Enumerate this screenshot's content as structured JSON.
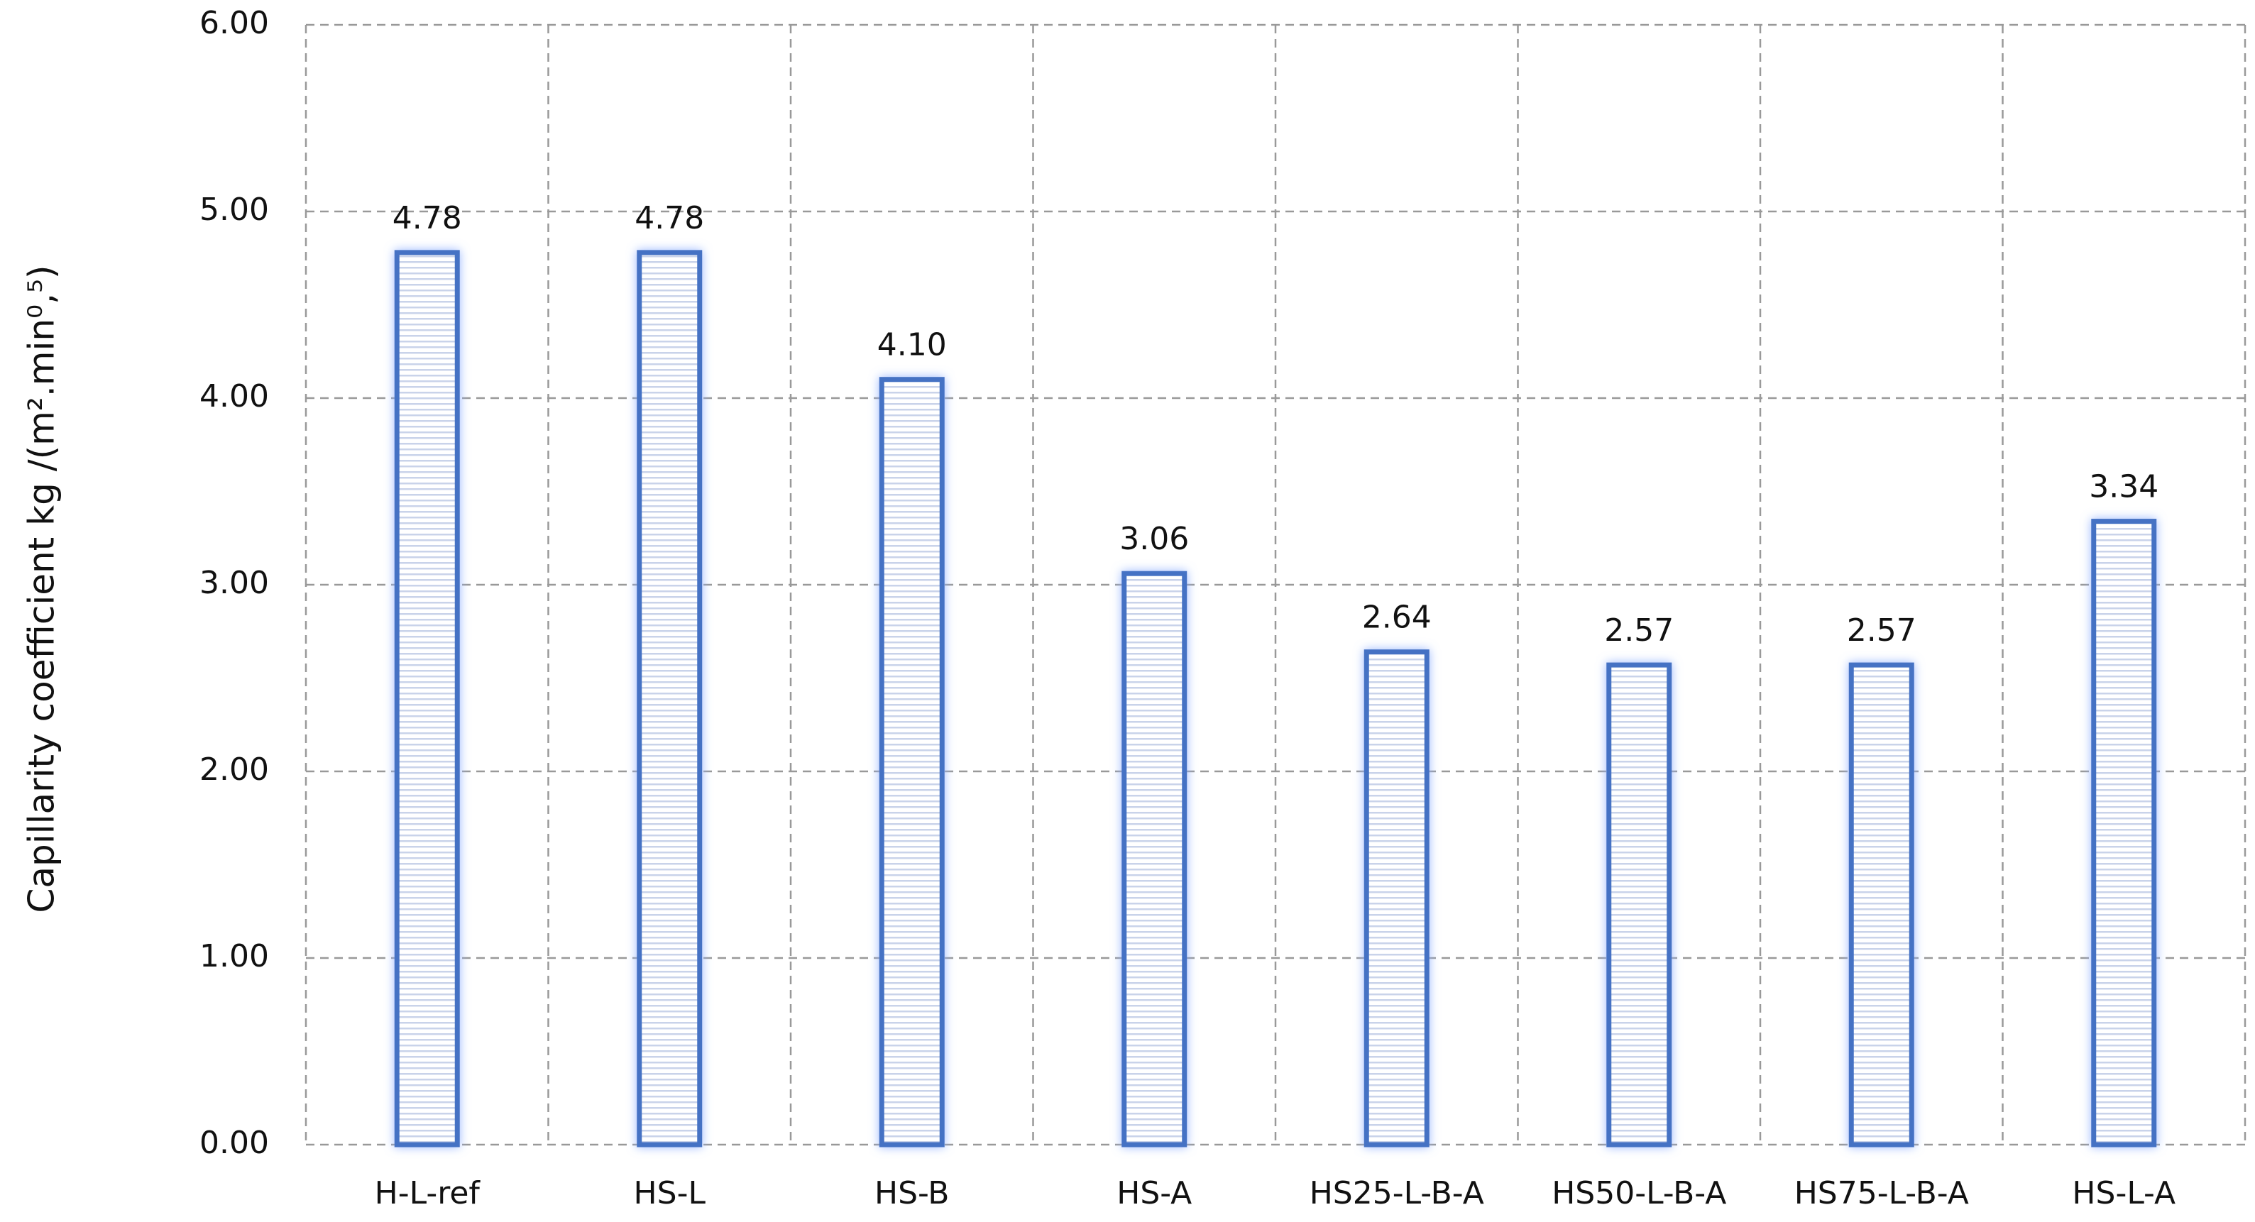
{
  "chart_data": {
    "type": "bar",
    "y_label": "Capillarity coefficient  kg /(m².min⁰,⁵)",
    "categories": [
      "H-L-ref",
      "HS-L",
      "HS-B",
      "HS-A",
      "HS25-L-B-A",
      "HS50-L-B-A",
      "HS75-L-B-A",
      "HS-L-A"
    ],
    "values": [
      4.78,
      4.78,
      4.1,
      3.06,
      2.64,
      2.57,
      2.57,
      3.34
    ],
    "value_labels": [
      "4.78",
      "4.78",
      "4.10",
      "3.06",
      "2.64",
      "2.57",
      "2.57",
      "3.34"
    ],
    "color": "#4472c4",
    "ylim": [
      0,
      6
    ],
    "yticks": [
      {
        "value": 0,
        "label": "0.00"
      },
      {
        "value": 1,
        "label": "1.00"
      },
      {
        "value": 2,
        "label": "2.00"
      },
      {
        "value": 3,
        "label": "3.00"
      },
      {
        "value": 4,
        "label": "4.00"
      },
      {
        "value": 5,
        "label": "5.00"
      },
      {
        "value": 6,
        "label": "6.00"
      }
    ],
    "grid": true
  }
}
